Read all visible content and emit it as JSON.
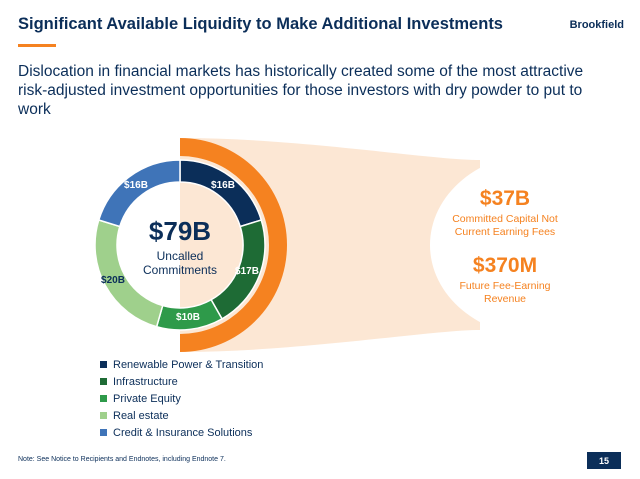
{
  "header": {
    "title": "Significant Available Liquidity to Make Additional Investments",
    "logo_text": "Brookfield",
    "subtitle": "Dislocation in financial markets has historically created some of the most attractive risk-adjusted investment opportunities for those investors with dry powder to put to work"
  },
  "chart_data": {
    "type": "donut",
    "center_value": "$79B",
    "center_label": "Uncalled Commitments",
    "slices": [
      {
        "name": "Renewable Power & Transition",
        "value": 16,
        "label": "$16B",
        "color": "#0b2e59"
      },
      {
        "name": "Infrastructure",
        "value": 17,
        "label": "$17B",
        "color": "#1e6b35"
      },
      {
        "name": "Private Equity",
        "value": 10,
        "label": "$10B",
        "color": "#2e9a4a"
      },
      {
        "name": "Real estate",
        "value": 20,
        "label": "$20B",
        "color": "#9fd08c"
      },
      {
        "name": "Credit & Insurance Solutions",
        "value": 16,
        "label": "$16B",
        "color": "#3f74b8"
      }
    ],
    "highlight_color": "#f58220",
    "highlight_fill_color": "#fbe3cc"
  },
  "callouts": [
    {
      "value": "$37B",
      "label": "Committed Capital Not Current Earning Fees"
    },
    {
      "value": "$370M",
      "label": "Future Fee-Earning Revenue"
    }
  ],
  "footer": {
    "note": "Note: See Notice to Recipients and Endnotes, including Endnote 7.",
    "page_number": "15"
  }
}
